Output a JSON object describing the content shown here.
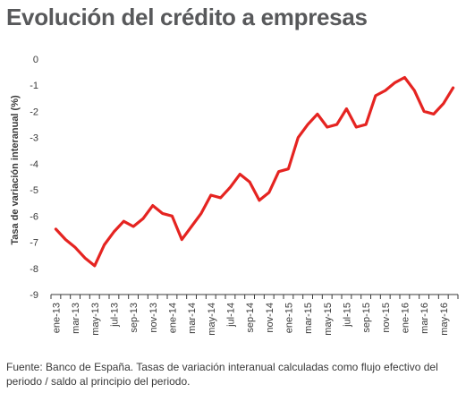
{
  "header": {
    "title": "Evolución del crédito a empresas"
  },
  "footer": {
    "source": "Fuente: Banco de España. Tasas de variación interanual calculadas como flujo efectivo del periodo / saldo al principio del periodo."
  },
  "colors": {
    "series": "#e52421",
    "axis": "#3a3a3a",
    "title": "#58595b"
  },
  "chart_data": {
    "type": "line",
    "title": "Evolución del crédito a empresas",
    "ylabel": "Tasa de variación interanual (%)",
    "xlabel": "",
    "ylim": [
      -9,
      0
    ],
    "yticks": [
      0,
      -1,
      -2,
      -3,
      -4,
      -5,
      -6,
      -7,
      -8,
      -9
    ],
    "grid": false,
    "legend": "none",
    "x_tick_labels": [
      "ene-13",
      "mar-13",
      "may-13",
      "jul-13",
      "sep-13",
      "nov-13",
      "ene-14",
      "mar-14",
      "may-14",
      "jul-14",
      "sep-14",
      "nov-14",
      "ene-15",
      "mar-15",
      "may-15",
      "jul-15",
      "sep-15",
      "nov-15",
      "ene-16",
      "mar-16",
      "may-16"
    ],
    "x": [
      "ene-13",
      "feb-13",
      "mar-13",
      "abr-13",
      "may-13",
      "jun-13",
      "jul-13",
      "ago-13",
      "sep-13",
      "oct-13",
      "nov-13",
      "dic-13",
      "ene-14",
      "feb-14",
      "mar-14",
      "abr-14",
      "may-14",
      "jun-14",
      "jul-14",
      "ago-14",
      "sep-14",
      "oct-14",
      "nov-14",
      "dic-14",
      "ene-15",
      "feb-15",
      "mar-15",
      "abr-15",
      "may-15",
      "jun-15",
      "jul-15",
      "ago-15",
      "sep-15",
      "oct-15",
      "nov-15",
      "dic-15",
      "ene-16",
      "feb-16",
      "mar-16",
      "abr-16",
      "may-16",
      "jun-16"
    ],
    "series": [
      {
        "values": [
          -6.5,
          -6.9,
          -7.2,
          -7.6,
          -7.9,
          -7.1,
          -6.6,
          -6.2,
          -6.4,
          -6.1,
          -5.6,
          -5.9,
          -6.0,
          -6.9,
          -6.4,
          -5.9,
          -5.2,
          -5.3,
          -4.9,
          -4.4,
          -4.7,
          -5.4,
          -5.1,
          -4.3,
          -4.2,
          -3.0,
          -2.5,
          -2.1,
          -2.6,
          -2.5,
          -1.9,
          -2.6,
          -2.5,
          -1.4,
          -1.2,
          -0.9,
          -0.7,
          -1.2,
          -2.0,
          -2.1,
          -1.7,
          -1.1
        ]
      }
    ]
  }
}
